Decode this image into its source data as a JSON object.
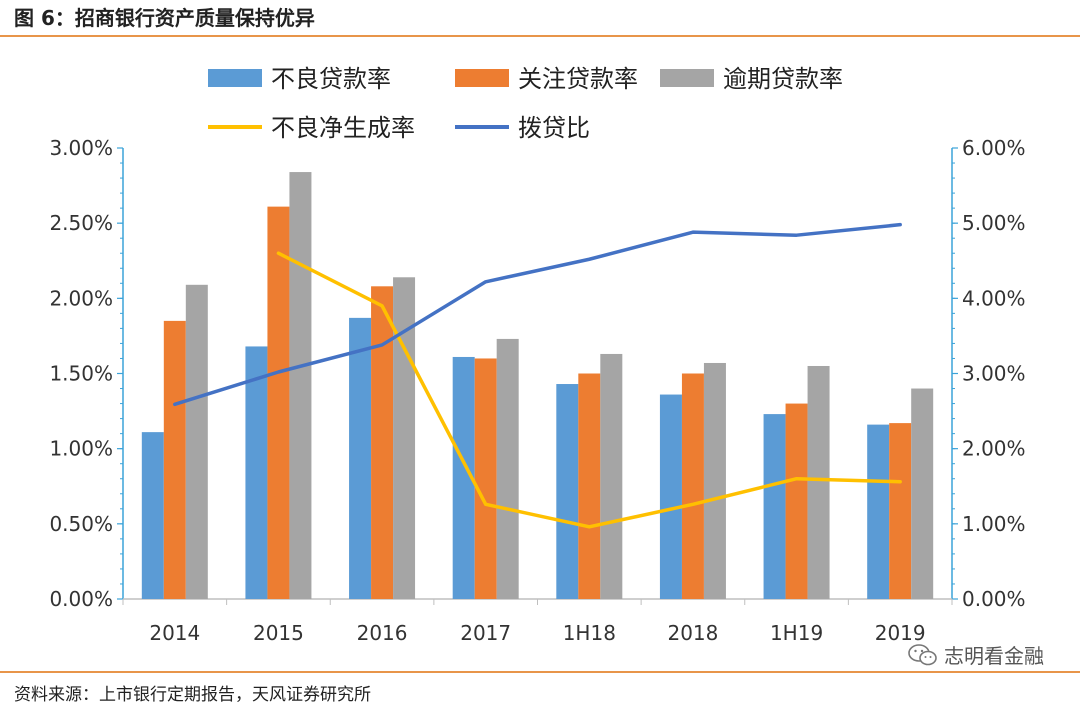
{
  "figure": {
    "title": "图 6：招商银行资产质量保持优异",
    "source": "资料来源：上市银行定期报告，天风证券研究所",
    "watermark": "志明看金融"
  },
  "chart_data": {
    "type": "bar",
    "title": "",
    "xlabel": "",
    "ylabel": "",
    "categories": [
      "2014",
      "2015",
      "2016",
      "2017",
      "1H18",
      "2018",
      "1H19",
      "2019"
    ],
    "ylim": [
      0,
      3.0
    ],
    "y2lim": [
      0,
      6.0
    ],
    "yticks": [
      "0.00%",
      "0.50%",
      "1.00%",
      "1.50%",
      "2.00%",
      "2.50%",
      "3.00%"
    ],
    "y2ticks": [
      "0.00%",
      "1.00%",
      "2.00%",
      "3.00%",
      "4.00%",
      "5.00%",
      "6.00%"
    ],
    "legend_position": "top",
    "series": [
      {
        "name": "不良贷款率",
        "kind": "bar",
        "axis": "left",
        "color": "#5B9BD5",
        "values": [
          1.11,
          1.68,
          1.87,
          1.61,
          1.43,
          1.36,
          1.23,
          1.16
        ]
      },
      {
        "name": "关注贷款率",
        "kind": "bar",
        "axis": "left",
        "color": "#ED7D31",
        "values": [
          1.85,
          2.61,
          2.08,
          1.6,
          1.5,
          1.5,
          1.3,
          1.17
        ]
      },
      {
        "name": "逾期贷款率",
        "kind": "bar",
        "axis": "left",
        "color": "#A5A5A5",
        "values": [
          2.09,
          2.84,
          2.14,
          1.73,
          1.63,
          1.57,
          1.55,
          1.4
        ]
      },
      {
        "name": "不良净生成率",
        "kind": "line",
        "axis": "left",
        "color": "#FFC000",
        "values": [
          null,
          2.3,
          1.95,
          0.63,
          0.48,
          0.63,
          0.8,
          0.78
        ]
      },
      {
        "name": "拨贷比",
        "kind": "line",
        "axis": "right",
        "color": "#4472C4",
        "values": [
          2.59,
          3.02,
          3.38,
          4.22,
          4.52,
          4.88,
          4.84,
          4.98
        ]
      }
    ]
  }
}
